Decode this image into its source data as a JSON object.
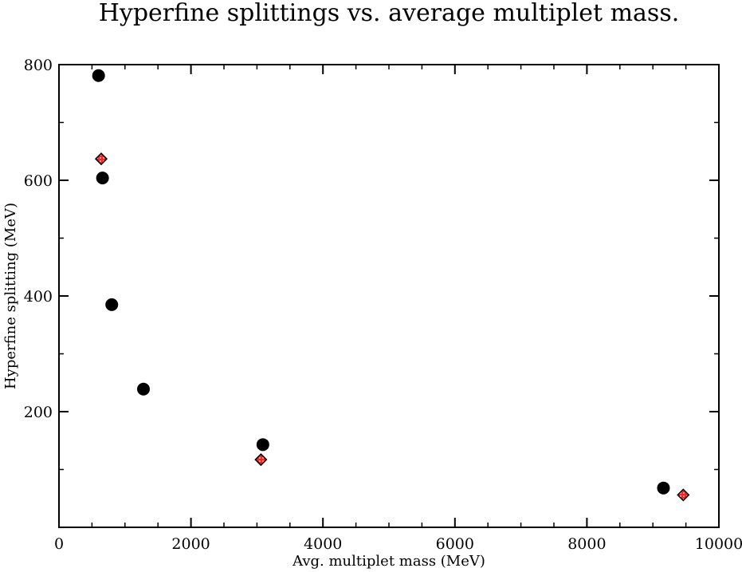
{
  "chart_data": {
    "type": "scatter",
    "title": "Hyperfine splittings vs. average multiplet mass.",
    "xlabel": "Avg. multiplet mass (MeV)",
    "ylabel": "Hyperfine splitting (MeV)",
    "xlim": [
      0,
      10000
    ],
    "ylim": [
      0,
      800
    ],
    "x_ticks": [
      0,
      2000,
      4000,
      6000,
      8000,
      10000
    ],
    "y_ticks": [
      200,
      400,
      600,
      800
    ],
    "x_minor_step": 500,
    "y_minor_step": 100,
    "grid": false,
    "series": [
      {
        "name": "circles",
        "marker": "circle",
        "color": "#000000",
        "points": [
          {
            "x": 600,
            "y": 781
          },
          {
            "x": 660,
            "y": 604
          },
          {
            "x": 800,
            "y": 385
          },
          {
            "x": 1280,
            "y": 239
          },
          {
            "x": 3090,
            "y": 143
          },
          {
            "x": 9160,
            "y": 68
          }
        ]
      },
      {
        "name": "diamonds",
        "marker": "diamond",
        "color": "#ff2020",
        "points": [
          {
            "x": 640,
            "y": 637
          },
          {
            "x": 3060,
            "y": 117
          },
          {
            "x": 9460,
            "y": 56
          }
        ]
      }
    ]
  }
}
